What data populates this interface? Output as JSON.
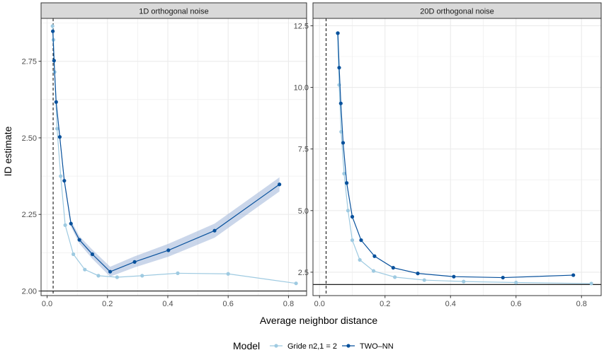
{
  "y_axis_label": "ID estimate",
  "x_axis_label": "Average neighbor distance",
  "legend": {
    "title": "Model",
    "items": [
      {
        "label": "Gride n2,1 = 2",
        "color": "#9ecae1"
      },
      {
        "label": "TWO–NN",
        "color": "#08519c"
      }
    ]
  },
  "colors": {
    "panel_strip": "#d9d9d9",
    "grid": "#ebebeb",
    "ribbon": "#9fb4d8"
  },
  "chart_data": [
    {
      "type": "line",
      "title": "1D orthogonal noise",
      "xlim": [
        -0.02,
        0.86
      ],
      "ylim": [
        1.985,
        2.89
      ],
      "x_ticks": [
        0.0,
        0.2,
        0.4,
        0.6,
        0.8
      ],
      "x_tick_labels": [
        "0.0",
        "0.2",
        "0.4",
        "0.6",
        "0.8"
      ],
      "y_ticks": [
        2.0,
        2.25,
        2.5,
        2.75
      ],
      "y_tick_labels": [
        "2.00",
        "2.25",
        "2.50",
        "2.75"
      ],
      "grid": true,
      "vline_x": 0.02,
      "hline_y": 2.0,
      "series": [
        {
          "name": "Gride n2,1 = 2",
          "x": [
            0.018,
            0.021,
            0.025,
            0.033,
            0.045,
            0.06,
            0.087,
            0.125,
            0.17,
            0.232,
            0.315,
            0.433,
            0.6,
            0.825
          ],
          "y": [
            2.865,
            2.82,
            2.715,
            2.53,
            2.375,
            2.215,
            2.12,
            2.07,
            2.05,
            2.045,
            2.05,
            2.058,
            2.056,
            2.025
          ]
        },
        {
          "name": "TWO–NN",
          "x": [
            0.019,
            0.023,
            0.03,
            0.042,
            0.057,
            0.079,
            0.107,
            0.15,
            0.209,
            0.29,
            0.402,
            0.555,
            0.77
          ],
          "y": [
            2.848,
            2.752,
            2.617,
            2.503,
            2.36,
            2.22,
            2.167,
            2.12,
            2.063,
            2.095,
            2.133,
            2.197,
            2.348
          ],
          "lower": [
            2.835,
            2.742,
            2.607,
            2.493,
            2.35,
            2.21,
            2.155,
            2.105,
            2.047,
            2.077,
            2.112,
            2.174,
            2.325
          ],
          "upper": [
            2.861,
            2.762,
            2.627,
            2.513,
            2.37,
            2.23,
            2.179,
            2.135,
            2.079,
            2.113,
            2.154,
            2.22,
            2.371
          ]
        }
      ]
    },
    {
      "type": "line",
      "title": "20D orthogonal noise",
      "xlim": [
        -0.02,
        0.86
      ],
      "ylim": [
        1.55,
        12.8
      ],
      "x_ticks": [
        0.0,
        0.2,
        0.4,
        0.6,
        0.8
      ],
      "x_tick_labels": [
        "0.0",
        "0.2",
        "0.4",
        "0.6",
        "0.8"
      ],
      "y_ticks": [
        2.5,
        5.0,
        7.5,
        10.0,
        12.5
      ],
      "y_tick_labels": [
        "2.5",
        "5.0",
        "7.5",
        "10.0",
        "12.5"
      ],
      "grid": true,
      "vline_x": 0.02,
      "hline_y": 2.0,
      "series": [
        {
          "name": "Gride n2,1 = 2",
          "x": [
            0.055,
            0.06,
            0.066,
            0.075,
            0.087,
            0.1,
            0.123,
            0.165,
            0.23,
            0.32,
            0.44,
            0.6,
            0.83
          ],
          "y": [
            12.2,
            10.1,
            8.2,
            6.5,
            5.0,
            3.8,
            3.0,
            2.55,
            2.3,
            2.18,
            2.12,
            2.08,
            2.04
          ]
        },
        {
          "name": "TWO–NN",
          "x": [
            0.056,
            0.06,
            0.065,
            0.072,
            0.083,
            0.1,
            0.127,
            0.168,
            0.225,
            0.3,
            0.41,
            0.56,
            0.775
          ],
          "y": [
            12.2,
            10.8,
            9.35,
            7.75,
            6.12,
            4.75,
            3.8,
            3.15,
            2.68,
            2.45,
            2.32,
            2.28,
            2.38
          ]
        }
      ]
    }
  ]
}
